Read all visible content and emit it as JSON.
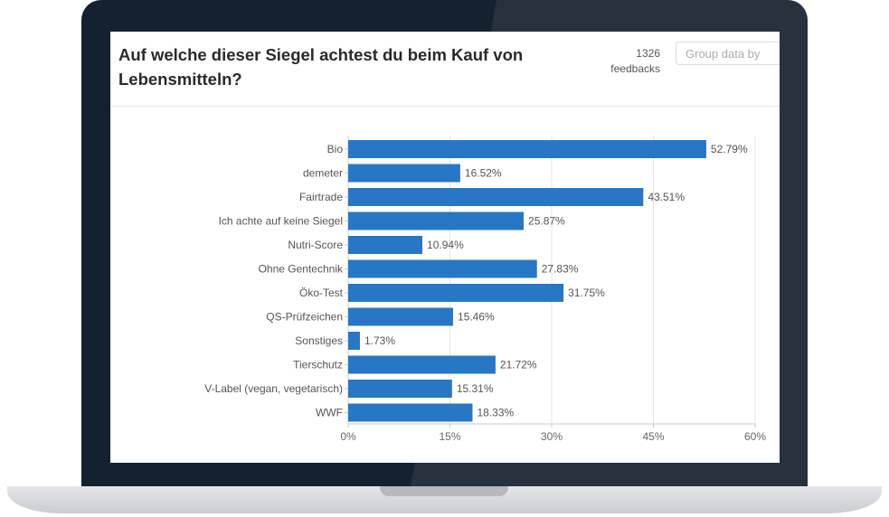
{
  "header": {
    "title": "Auf welche dieser Siegel achtest du beim Kauf von Lebensmitteln?",
    "feedback_count": "1326",
    "feedback_label": "feedbacks",
    "group_placeholder": "Group data by"
  },
  "colors": {
    "bar": "#2777c5",
    "bar_highlight": "#3d8bd0",
    "lid": "#15212e",
    "grid": "#e3e6ea"
  },
  "chart_data": {
    "type": "bar",
    "orientation": "horizontal",
    "title": "Auf welche dieser Siegel achtest du beim Kauf von Lebensmitteln?",
    "xlabel": "",
    "ylabel": "",
    "xlim": [
      0,
      60
    ],
    "x_ticks": [
      0,
      15,
      30,
      45,
      60
    ],
    "x_tick_labels": [
      "0%",
      "15%",
      "30%",
      "45%",
      "60%"
    ],
    "grid": true,
    "categories": [
      "Bio",
      "demeter",
      "Fairtrade",
      "Ich achte auf keine Siegel",
      "Nutri-Score",
      "Ohne Gentechnik",
      "Öko-Test",
      "QS-Prüfzeichen",
      "Sonstiges",
      "Tierschutz",
      "V-Label (vegan, vegetarisch)",
      "WWF"
    ],
    "values": [
      52.79,
      16.52,
      43.51,
      25.87,
      10.94,
      27.83,
      31.75,
      15.46,
      1.73,
      21.72,
      15.31,
      18.33
    ],
    "value_labels": [
      "52.79%",
      "16.52%",
      "43.51%",
      "25.87%",
      "10.94%",
      "27.83%",
      "31.75%",
      "15.46%",
      "1.73%",
      "21.72%",
      "15.31%",
      "18.33%"
    ]
  }
}
